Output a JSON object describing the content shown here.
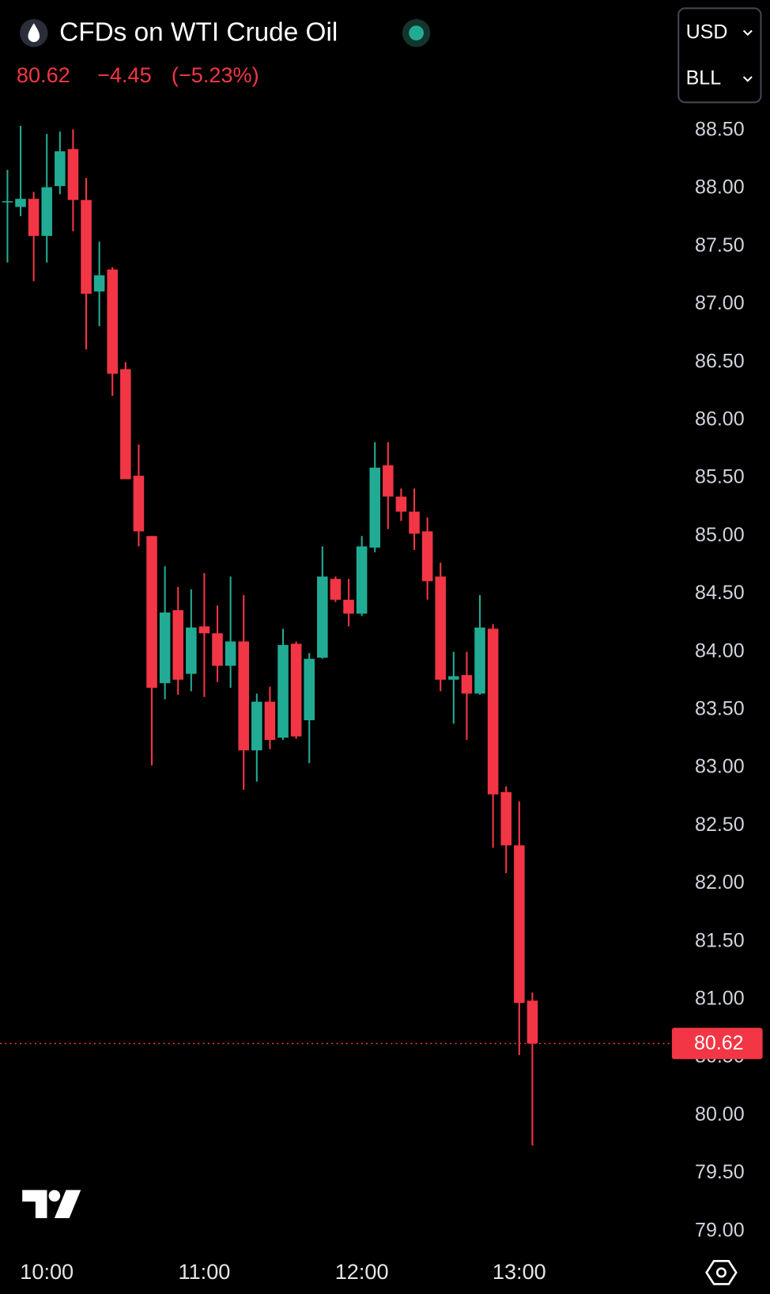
{
  "chart_data": {
    "type": "candlestick",
    "title": "CFDs on WTI Crude Oil",
    "change": "−4.45",
    "change_pct": "(−5.23%)",
    "currency": "USD",
    "unit": "BLL",
    "up_color": "#22ab94",
    "down_color": "#f23645",
    "categories": [
      null,
      null,
      null,
      "10:00",
      null,
      null,
      null,
      null,
      null,
      null,
      null,
      null,
      null,
      null,
      null,
      "11:00",
      null,
      null,
      null,
      null,
      null,
      null,
      null,
      null,
      null,
      null,
      null,
      "12:00",
      null,
      null,
      null,
      null,
      null,
      null,
      null,
      null,
      null,
      null,
      null,
      "13:00",
      null
    ],
    "open": [
      87.88,
      87.84,
      87.91,
      87.59,
      88.02,
      88.34,
      87.9,
      87.11,
      87.3,
      86.44,
      85.52,
      85.0,
      83.73,
      84.36,
      83.81,
      84.22,
      84.16,
      83.88,
      84.09,
      83.15,
      83.57,
      83.26,
      84.07,
      83.41,
      83.95,
      84.63,
      84.45,
      84.33,
      84.9,
      85.61,
      85.34,
      85.21,
      85.04,
      84.65,
      83.76,
      83.8,
      83.64,
      84.2,
      82.79,
      82.33,
      80.99
    ],
    "high": [
      88.16,
      88.54,
      87.97,
      88.47,
      88.49,
      88.51,
      88.09,
      87.54,
      87.32,
      86.5,
      85.79,
      85.0,
      84.74,
      84.56,
      84.54,
      84.68,
      84.4,
      84.65,
      84.49,
      83.64,
      83.7,
      84.2,
      84.09,
      83.99,
      84.91,
      84.65,
      84.63,
      85.0,
      85.81,
      85.81,
      85.41,
      85.41,
      85.16,
      84.77,
      84.0,
      84.0,
      84.49,
      84.24,
      82.84,
      82.71,
      81.06
    ],
    "low": [
      87.36,
      87.76,
      87.2,
      87.36,
      87.95,
      87.63,
      86.61,
      86.81,
      86.21,
      85.49,
      84.91,
      83.02,
      83.59,
      83.63,
      83.66,
      83.61,
      83.74,
      83.69,
      82.81,
      82.88,
      83.16,
      83.24,
      83.25,
      83.04,
      83.94,
      84.43,
      84.22,
      84.31,
      84.86,
      85.06,
      85.13,
      84.88,
      84.45,
      83.66,
      83.38,
      83.24,
      83.63,
      82.31,
      82.09,
      80.52,
      79.74
    ],
    "close": [
      87.89,
      87.91,
      87.59,
      88.01,
      88.32,
      87.9,
      87.09,
      87.25,
      86.4,
      85.49,
      85.04,
      83.69,
      84.34,
      83.76,
      84.21,
      84.16,
      83.88,
      84.09,
      83.15,
      83.57,
      83.24,
      84.06,
      83.27,
      83.94,
      84.65,
      84.45,
      84.33,
      84.91,
      85.59,
      85.34,
      85.21,
      85.02,
      84.61,
      83.76,
      83.79,
      83.64,
      84.21,
      82.77,
      82.33,
      80.97,
      80.62
    ],
    "ylim": [
      78.8,
      88.7
    ],
    "yticks": [
      {
        "value": 88.5,
        "label": "88.50"
      },
      {
        "value": 88,
        "label": "88.00"
      },
      {
        "value": 87.5,
        "label": "87.50"
      },
      {
        "value": 87,
        "label": "87.00"
      },
      {
        "value": 86.5,
        "label": "86.50"
      },
      {
        "value": 86,
        "label": "86.00"
      },
      {
        "value": 85.5,
        "label": "85.50"
      },
      {
        "value": 85,
        "label": "85.00"
      },
      {
        "value": 84.5,
        "label": "84.50"
      },
      {
        "value": 84,
        "label": "84.00"
      },
      {
        "value": 83.5,
        "label": "83.50"
      },
      {
        "value": 83,
        "label": "83.00"
      },
      {
        "value": 82.5,
        "label": "82.50"
      },
      {
        "value": 82,
        "label": "82.00"
      },
      {
        "value": 81.5,
        "label": "81.50"
      },
      {
        "value": 81,
        "label": "81.00"
      },
      {
        "value": 80.5,
        "label": "80.50"
      },
      {
        "value": 80,
        "label": "80.00"
      },
      {
        "value": 79.5,
        "label": "79.50"
      },
      {
        "value": 79,
        "label": "79.00"
      }
    ],
    "grid": false
  }
}
